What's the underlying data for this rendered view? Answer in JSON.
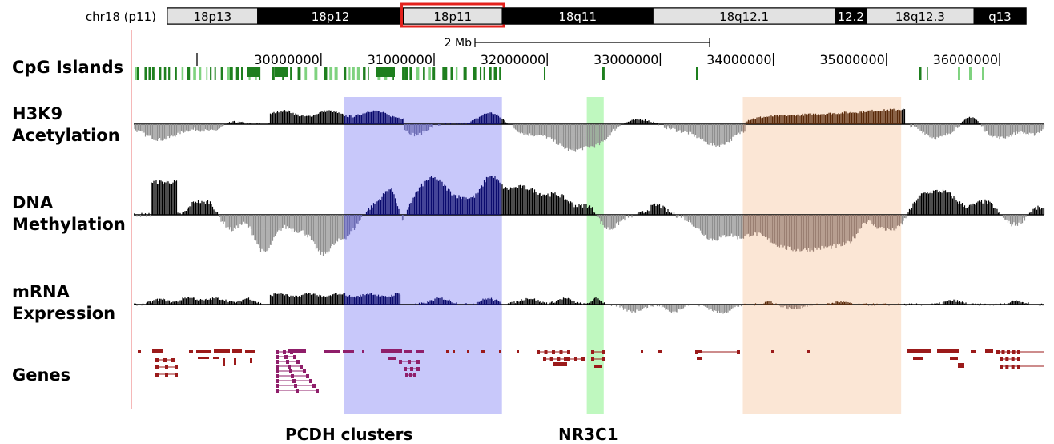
{
  "chromosome": {
    "label": "chr18 (p11)",
    "bands": [
      {
        "name": "18p13",
        "start": 0,
        "end": 5.2,
        "fill": "#e2e2e2",
        "text": "#000000"
      },
      {
        "name": "18p12",
        "start": 5.2,
        "end": 13.6,
        "fill": "#000000",
        "text": "#ffffff"
      },
      {
        "name": "18p11",
        "start": 13.6,
        "end": 19.3,
        "fill": "#e2e2e2",
        "text": "#000000"
      },
      {
        "name": "18q11",
        "start": 19.3,
        "end": 28.0,
        "fill": "#000000",
        "text": "#ffffff"
      },
      {
        "name": "18q12.1",
        "start": 28.0,
        "end": 38.5,
        "fill": "#e2e2e2",
        "text": "#000000"
      },
      {
        "name": "12.2",
        "start": 38.5,
        "end": 40.3,
        "fill": "#000000",
        "text": "#ffffff"
      },
      {
        "name": "18q12.3",
        "start": 40.3,
        "end": 46.5,
        "fill": "#e2e2e2",
        "text": "#000000"
      },
      {
        "name": "q13",
        "start": 46.5,
        "end": 49.5,
        "fill": "#000000",
        "text": "#ffffff"
      }
    ],
    "highlight_band": "18p11",
    "highlight_color": "#e3211c"
  },
  "scale_bar": {
    "label": "2 Mb"
  },
  "axis": {
    "ticks": [
      {
        "value": 30000000,
        "label": "30000000"
      },
      {
        "value": 31000000,
        "label": "31000000"
      },
      {
        "value": 32000000,
        "label": "32000000"
      },
      {
        "value": 33000000,
        "label": "33000000"
      },
      {
        "value": 34000000,
        "label": "34000000"
      },
      {
        "value": 35000000,
        "label": "35000000"
      },
      {
        "value": 36000000,
        "label": "36000000"
      }
    ]
  },
  "tracks": [
    {
      "id": "cpg",
      "label_lines": [
        "CpG Islands"
      ]
    },
    {
      "id": "h3k9",
      "label_lines": [
        "H3K9",
        "Acetylation"
      ]
    },
    {
      "id": "meth",
      "label_lines": [
        "DNA",
        "Methylation"
      ]
    },
    {
      "id": "mrna",
      "label_lines": [
        "mRNA",
        "Expression"
      ]
    },
    {
      "id": "genes",
      "label_lines": [
        "Genes"
      ]
    }
  ],
  "regions": [
    {
      "name": "PCDH clusters",
      "start": 30200000,
      "end": 31600000,
      "color": "#7b7bf2"
    },
    {
      "name": "NR3C1",
      "start": 32350000,
      "end": 32500000,
      "color": "#66ee66"
    },
    {
      "name": "",
      "start": 33730000,
      "end": 35130000,
      "color": "#f6c49c"
    }
  ],
  "colors": {
    "cpg_dark": "#1e7f1e",
    "cpg_light": "#7fd27f",
    "signal_positive": "#000000",
    "signal_negative": "#8f8f8f",
    "in_blue_positive": "#0b0b6e",
    "in_blue_negative": "#6b6bb4",
    "in_orange_positive": "#5a2a0a",
    "in_orange_negative": "#9a7f72",
    "genes": "#9b1a1a",
    "genes_in_blue": "#8f1e6a"
  }
}
